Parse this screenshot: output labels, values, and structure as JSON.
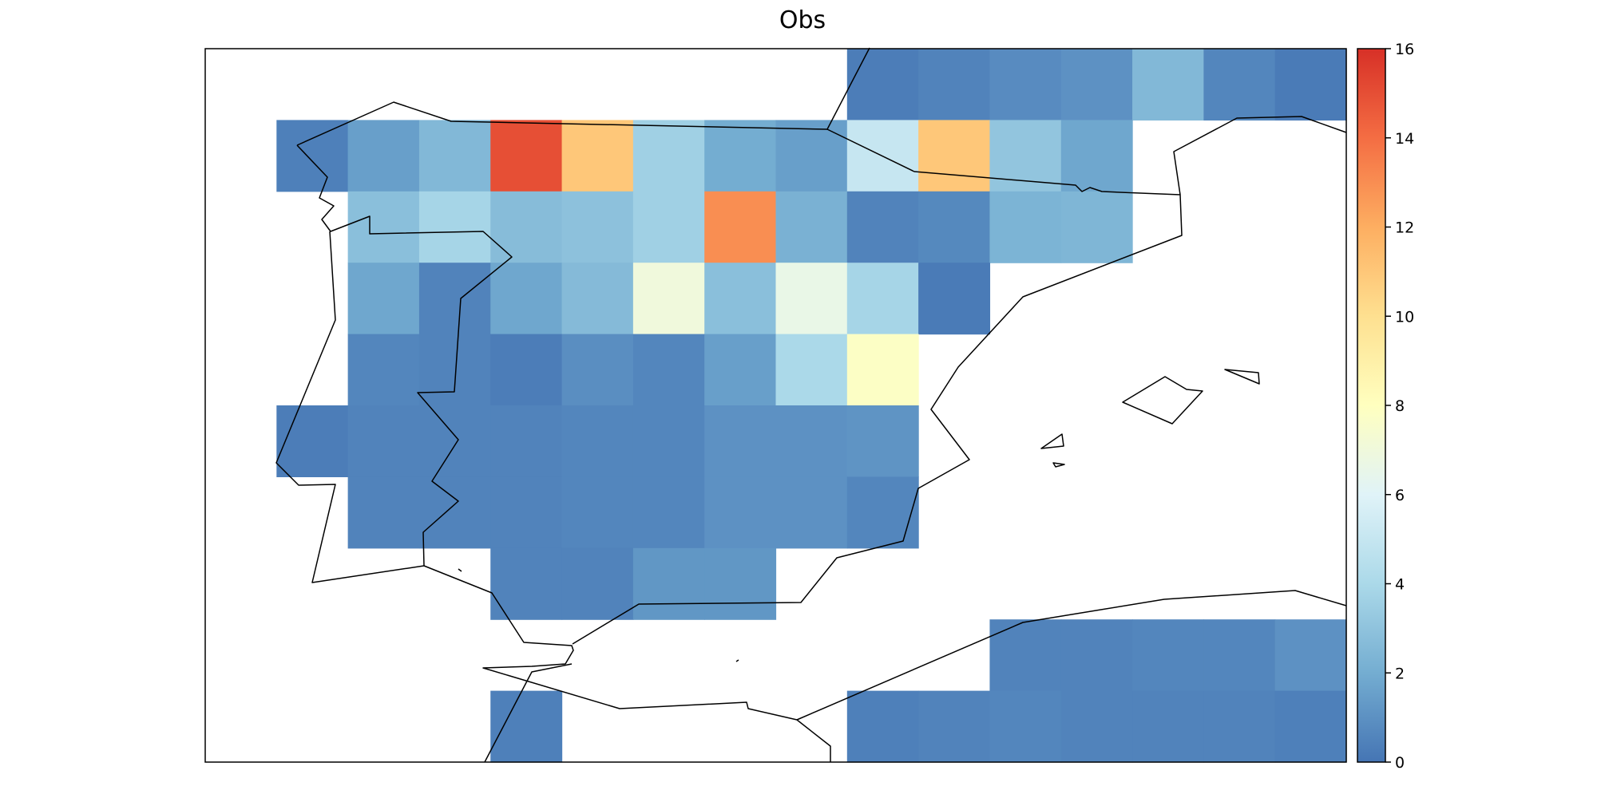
{
  "chart_data": {
    "type": "heatmap",
    "title": "Obs",
    "colorbar": {
      "min": 0,
      "max": 16,
      "ticks": [
        "0",
        "2",
        "4",
        "6",
        "8",
        "10",
        "12",
        "14",
        "16"
      ]
    },
    "grid": {
      "rows": 10,
      "cols": 16
    },
    "values": [
      [
        null,
        null,
        null,
        null,
        null,
        null,
        null,
        null,
        null,
        0.3,
        0.5,
        0.8,
        1.0,
        2.5,
        0.6,
        0.2
      ],
      [
        null,
        0.4,
        1.5,
        2.5,
        15.0,
        11.0,
        3.6,
        2.0,
        1.5,
        5.0,
        11.0,
        3.1,
        1.8,
        null,
        null,
        null
      ],
      [
        null,
        null,
        2.8,
        3.8,
        2.7,
        2.9,
        3.6,
        13.0,
        2.2,
        0.5,
        0.7,
        2.3,
        2.4,
        null,
        null,
        null
      ],
      [
        null,
        null,
        1.8,
        0.5,
        1.8,
        2.6,
        7.0,
        2.8,
        6.6,
        3.8,
        0.2,
        null,
        null,
        null,
        null,
        null
      ],
      [
        null,
        null,
        0.6,
        0.5,
        0.3,
        0.9,
        0.6,
        1.5,
        4.0,
        7.8,
        null,
        null,
        null,
        null,
        null,
        null
      ],
      [
        null,
        0.3,
        0.5,
        0.5,
        0.5,
        0.6,
        0.6,
        1.0,
        1.0,
        1.1,
        null,
        null,
        null,
        null,
        null,
        null
      ],
      [
        null,
        null,
        0.5,
        0.5,
        0.5,
        0.6,
        0.6,
        1.0,
        1.0,
        0.6,
        null,
        null,
        null,
        null,
        null,
        null
      ],
      [
        null,
        null,
        null,
        null,
        0.5,
        0.5,
        1.2,
        1.2,
        null,
        null,
        null,
        null,
        null,
        null,
        null,
        null
      ],
      [
        null,
        null,
        null,
        null,
        null,
        null,
        null,
        null,
        null,
        null,
        null,
        0.5,
        0.5,
        0.6,
        0.6,
        1.0
      ],
      [
        null,
        null,
        null,
        null,
        0.4,
        null,
        null,
        null,
        null,
        0.4,
        0.5,
        0.6,
        0.5,
        0.5,
        0.5,
        0.4
      ]
    ],
    "colorscale": [
      "#4575b4",
      "#74add1",
      "#abd9e9",
      "#e0f3f8",
      "#ffffbf",
      "#fee090",
      "#fdae61",
      "#f46d43",
      "#d73027"
    ]
  }
}
